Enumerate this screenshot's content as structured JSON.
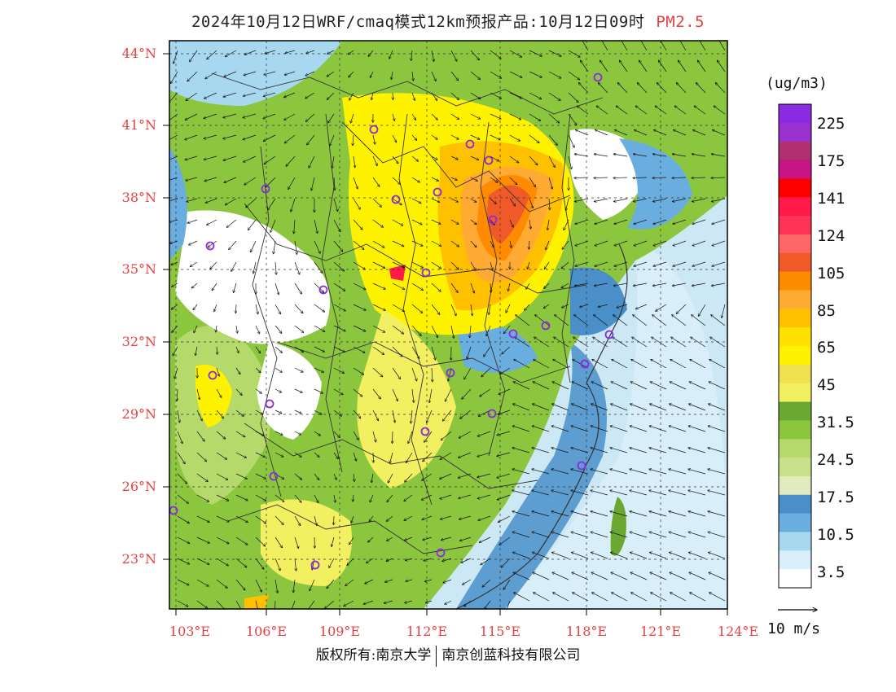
{
  "title": {
    "text": "2024年10月12日WRF/cmaq模式12km预报产品:10月12日09时",
    "variable": "PM2.5"
  },
  "axes": {
    "lat_labels": [
      "44°N",
      "41°N",
      "38°N",
      "35°N",
      "32°N",
      "29°N",
      "26°N",
      "23°N"
    ],
    "lon_labels": [
      "103°E",
      "106°E",
      "109°E",
      "112°E",
      "115°E",
      "118°E",
      "121°E",
      "124°E"
    ]
  },
  "colorbar": {
    "units": "(ug/m3)",
    "labels": [
      "225",
      "175",
      "141",
      "124",
      "105",
      "85",
      "65",
      "45",
      "31.5",
      "24.5",
      "17.5",
      "10.5",
      "3.5"
    ],
    "colors": [
      "#8a2be2",
      "#9b30d0",
      "#b03070",
      "#c71585",
      "#ff0000",
      "#ff1a4a",
      "#ff3355",
      "#ff6666",
      "#f05a28",
      "#ff8c00",
      "#ffaa33",
      "#ffc000",
      "#ffe000",
      "#fff200",
      "#f0e050",
      "#f2f060",
      "#6aa832",
      "#8cc63f",
      "#b5d96a",
      "#c9e08a",
      "#e0ecc0",
      "#4a8fc8",
      "#6aaee0",
      "#a8d8f0",
      "#d8eef8",
      "#ffffff"
    ]
  },
  "wind_reference": {
    "label": "10 m/s"
  },
  "copyright": {
    "left": "版权所有:南京大学",
    "right": "南京创蓝科技有限公司"
  }
}
